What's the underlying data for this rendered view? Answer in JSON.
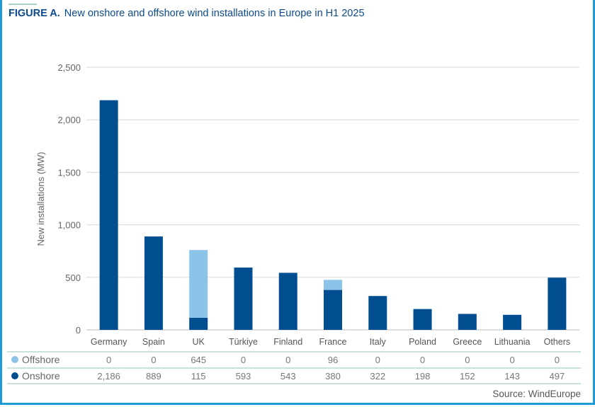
{
  "title": {
    "label": "FIGURE A.",
    "text": "New onshore and offshore wind installations in Europe in H1 2025"
  },
  "source": "Source: WindEurope",
  "chart_data": {
    "type": "bar",
    "stacked": true,
    "title": "New onshore and offshore wind installations in Europe in H1 2025",
    "ylabel": "New installations (MW)",
    "ylim": [
      0,
      2500
    ],
    "yticks": [
      "0",
      "500",
      "1,000",
      "1,500",
      "2,000",
      "2,500"
    ],
    "grid": true,
    "legend": "table-below",
    "categories": [
      "Germany",
      "Spain",
      "UK",
      "Türkiye",
      "Finland",
      "France",
      "Italy",
      "Poland",
      "Greece",
      "Lithuania",
      "Others"
    ],
    "series": [
      {
        "name": "Onshore",
        "color": "#004d8f",
        "values": [
          2186,
          889,
          115,
          593,
          543,
          380,
          322,
          198,
          152,
          143,
          497
        ],
        "labels": [
          "2,186",
          "889",
          "115",
          "593",
          "543",
          "380",
          "322",
          "198",
          "152",
          "143",
          "497"
        ]
      },
      {
        "name": "Offshore",
        "color": "#8cc3e9",
        "values": [
          0,
          0,
          645,
          0,
          0,
          96,
          0,
          0,
          0,
          0,
          0
        ],
        "labels": [
          "0",
          "0",
          "645",
          "0",
          "0",
          "96",
          "0",
          "0",
          "0",
          "0",
          "0"
        ]
      }
    ]
  }
}
